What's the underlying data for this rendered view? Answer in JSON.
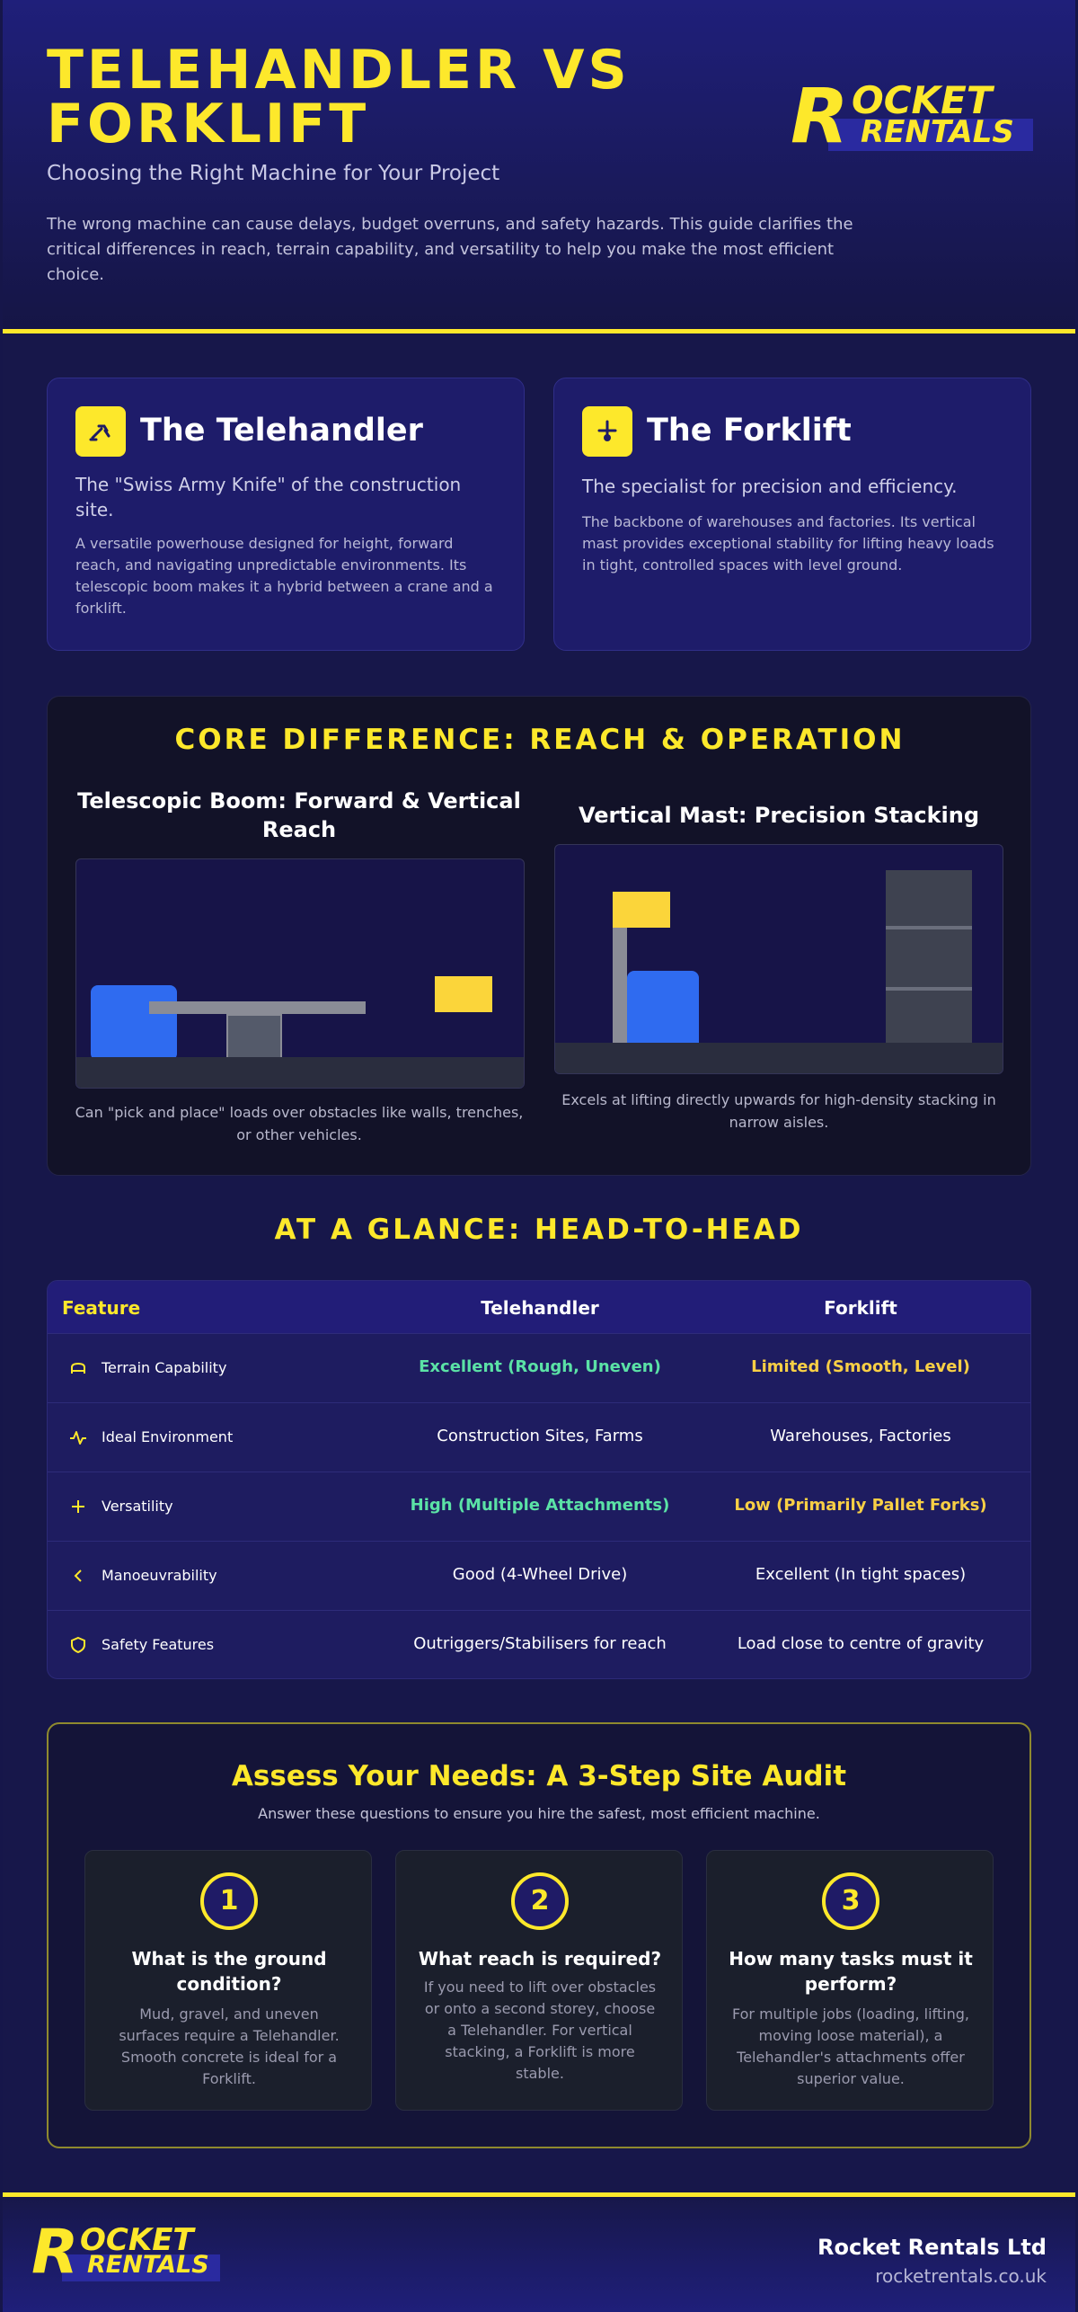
{
  "header": {
    "title": "TELEHANDLER VS FORKLIFT",
    "subtitle": "Choosing the Right Machine for Your Project",
    "intro": "The wrong machine can cause delays, budget overruns, and safety hazards. This guide clarifies the critical differences in reach, terrain capability, and versatility to help you make the most efficient choice."
  },
  "logo": {
    "initial": "R",
    "word1": "OCKET",
    "word2": "RENTALS"
  },
  "cards": {
    "telehandler": {
      "icon": "telehandler-icon",
      "title": "The Telehandler",
      "tagline": "The \"Swiss Army Knife\" of the construction site.",
      "description": "A versatile powerhouse designed for height, forward reach, and navigating unpredictable environments. Its telescopic boom makes it a hybrid between a crane and a forklift."
    },
    "forklift": {
      "icon": "forklift-icon",
      "title": "The Forklift",
      "tagline": "The specialist for precision and efficiency.",
      "description": "The backbone of warehouses and factories. Its vertical mast provides exceptional stability for lifting heavy loads in tight, controlled spaces with level ground."
    }
  },
  "core": {
    "title": "CORE DIFFERENCE: REACH & OPERATION",
    "telehandler": {
      "title": "Telescopic Boom: Forward & Vertical Reach",
      "caption": "Can \"pick and place\" loads over obstacles like walls, trenches, or other vehicles."
    },
    "forklift": {
      "title": "Vertical Mast: Precision Stacking",
      "caption": "Excels at lifting directly upwards for high-density stacking in narrow aisles."
    }
  },
  "glance": {
    "title": "AT A GLANCE: HEAD-TO-HEAD",
    "headers": {
      "feature": "Feature",
      "telehandler": "Telehandler",
      "forklift": "Forklift"
    },
    "rows": [
      {
        "icon": "terrain-icon",
        "feature": "Terrain Capability",
        "telehandler": "Excellent (Rough, Uneven)",
        "forklift": "Limited (Smooth, Level)"
      },
      {
        "icon": "activity-icon",
        "feature": "Ideal Environment",
        "telehandler": "Construction Sites, Farms",
        "forklift": "Warehouses, Factories"
      },
      {
        "icon": "move-icon",
        "feature": "Versatility",
        "telehandler": "High (Multiple Attachments)",
        "forklift": "Low (Primarily Pallet Forks)"
      },
      {
        "icon": "chevron-left-icon",
        "feature": "Manoeuvrability",
        "telehandler": "Good (4-Wheel Drive)",
        "forklift": "Excellent (In tight spaces)"
      },
      {
        "icon": "shield-icon",
        "feature": "Safety Features",
        "telehandler": "Outriggers/Stabilisers for reach",
        "forklift": "Load close to centre of gravity"
      }
    ]
  },
  "audit": {
    "title": "Assess Your Needs: A 3-Step Site Audit",
    "subtitle": "Answer these questions to ensure you hire the safest, most efficient machine.",
    "steps": [
      {
        "number": "1",
        "title": "What is the ground condition?",
        "body": "Mud, gravel, and uneven surfaces require a Telehandler. Smooth concrete is ideal for a Forklift."
      },
      {
        "number": "2",
        "title": "What reach is required?",
        "body": "If you need to lift over obstacles or onto a second storey, choose a Telehandler. For vertical stacking, a Forklift is more stable."
      },
      {
        "number": "3",
        "title": "How many tasks must it perform?",
        "body": "For multiple jobs (loading, lifting, moving loose material), a Telehandler's attachments offer superior value."
      }
    ]
  },
  "footer": {
    "company": "Rocket Rentals Ltd",
    "url": "rocketrentals.co.uk"
  },
  "colors": {
    "accent": "#fde82b",
    "navy": "#1e1c6a",
    "good": "#5be2a6",
    "warn": "#f8cf45",
    "machine": "#2f6bf0"
  }
}
